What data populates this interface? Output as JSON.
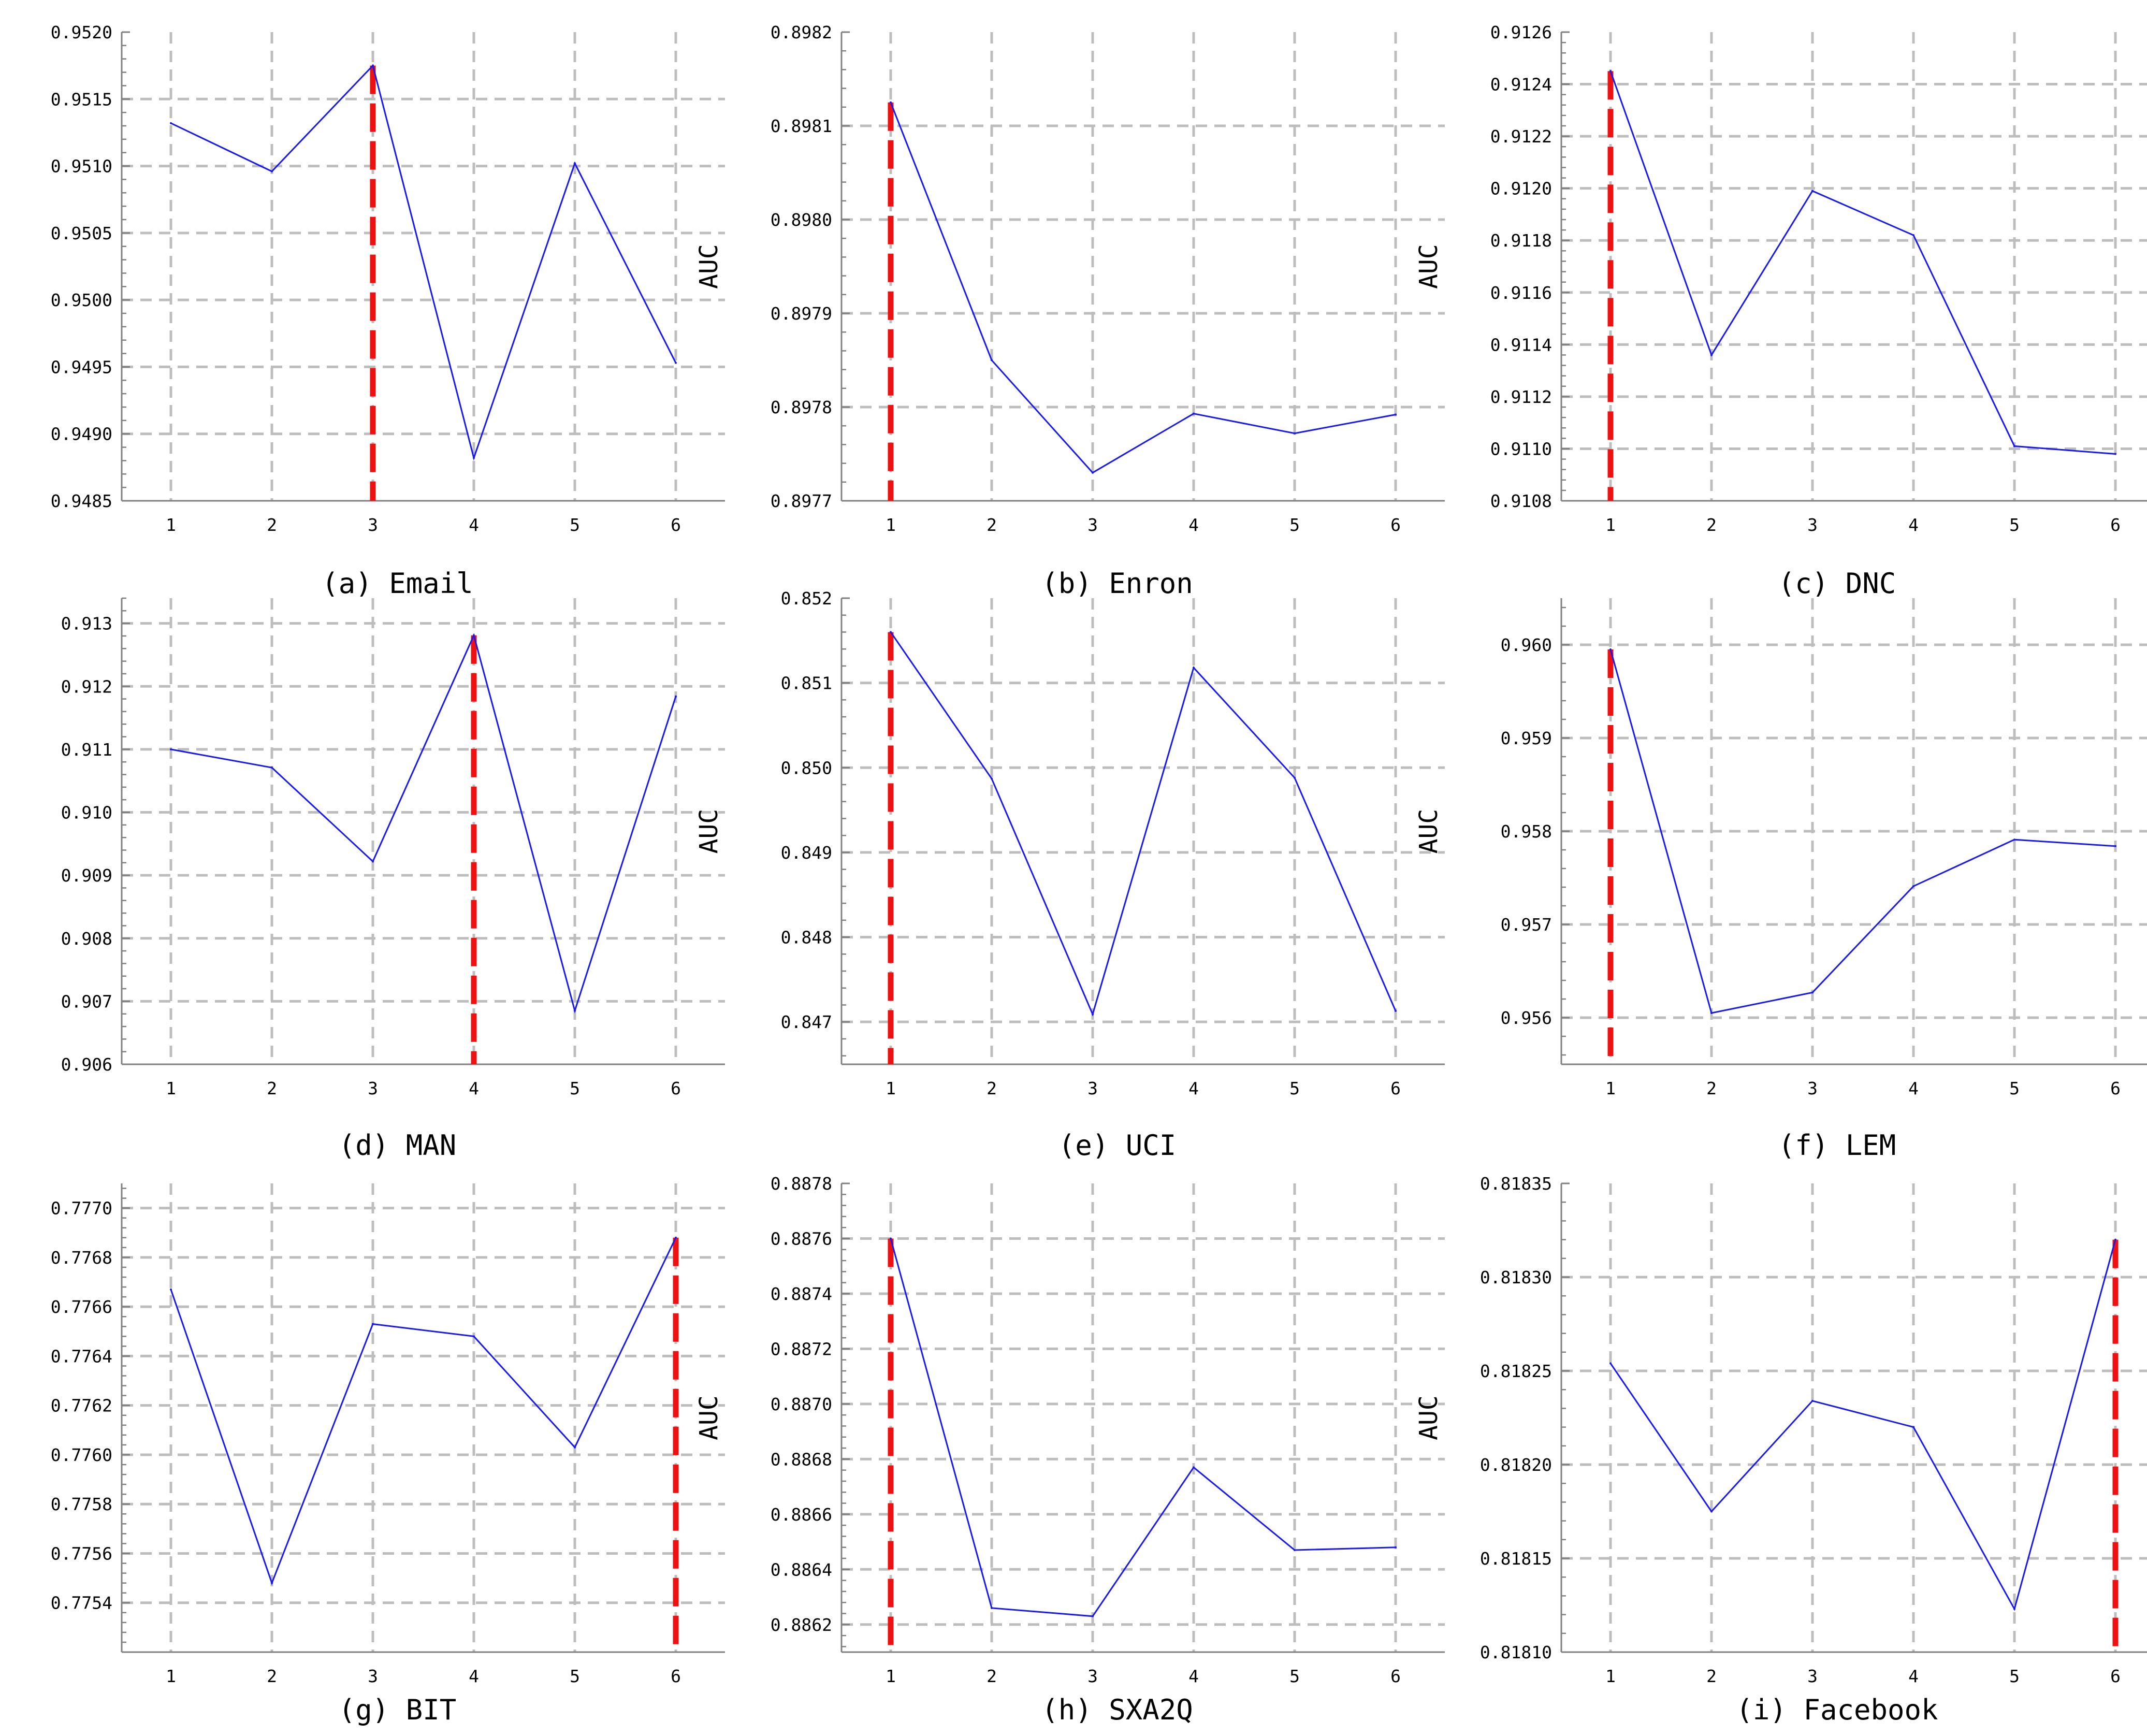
{
  "chart_data": [
    {
      "type": "line",
      "caption": "(a) Email",
      "ylabel": "AUC",
      "x": [
        1,
        2,
        3,
        4,
        5,
        6
      ],
      "values": [
        0.95132,
        0.95096,
        0.95175,
        0.94882,
        0.95102,
        0.94953
      ],
      "ylim": [
        0.9485,
        0.952
      ],
      "ticks": [
        "0.9485",
        "0.9490",
        "0.9495",
        "0.9500",
        "0.9505",
        "0.9510",
        "0.9515",
        "0.9520"
      ],
      "best": 3,
      "grid": true
    },
    {
      "type": "line",
      "caption": "(b) Enron",
      "ylabel": "AUC",
      "x": [
        1,
        2,
        3,
        4,
        5,
        6
      ],
      "values": [
        0.898125,
        0.89785,
        0.89773,
        0.897793,
        0.897772,
        0.897792
      ],
      "ylim": [
        0.8977,
        0.8982
      ],
      "ticks": [
        "0.8977",
        "0.8978",
        "0.8979",
        "0.8980",
        "0.8981",
        "0.8982"
      ],
      "best": 1,
      "grid": true
    },
    {
      "type": "line",
      "caption": "(c) DNC",
      "ylabel": "AUC",
      "x": [
        1,
        2,
        3,
        4,
        5,
        6
      ],
      "values": [
        0.91245,
        0.91136,
        0.91199,
        0.91182,
        0.91101,
        0.91098
      ],
      "ylim": [
        0.9108,
        0.9126
      ],
      "ticks": [
        "0.9108",
        "0.9110",
        "0.9112",
        "0.9114",
        "0.9116",
        "0.9118",
        "0.9120",
        "0.9122",
        "0.9124",
        "0.9126"
      ],
      "best": 1,
      "grid": true
    },
    {
      "type": "line",
      "caption": "(d) MAN",
      "ylabel": "AUC",
      "x": [
        1,
        2,
        3,
        4,
        5,
        6
      ],
      "values": [
        0.911,
        0.91071,
        0.90922,
        0.91281,
        0.90685,
        0.91184
      ],
      "ylim": [
        0.906,
        0.9134
      ],
      "ticks": [
        "0.906",
        "0.907",
        "0.908",
        "0.909",
        "0.910",
        "0.911",
        "0.912",
        "0.913"
      ],
      "best": 4,
      "grid": true
    },
    {
      "type": "line",
      "caption": "(e) UCI",
      "ylabel": "AUC",
      "x": [
        1,
        2,
        3,
        4,
        5,
        6
      ],
      "values": [
        0.8516,
        0.84987,
        0.84709,
        0.85118,
        0.84988,
        0.84713
      ],
      "ylim": [
        0.8465,
        0.852
      ],
      "ticks": [
        "0.847",
        "0.848",
        "0.849",
        "0.850",
        "0.851",
        "0.852"
      ],
      "best": 1,
      "grid": true
    },
    {
      "type": "line",
      "caption": "(f) LEM",
      "ylabel": "AUC",
      "x": [
        1,
        2,
        3,
        4,
        5,
        6
      ],
      "values": [
        0.95995,
        0.95605,
        0.95627,
        0.95741,
        0.95791,
        0.95784
      ],
      "ylim": [
        0.9555,
        0.9605
      ],
      "ticks": [
        "0.956",
        "0.957",
        "0.958",
        "0.959",
        "0.960"
      ],
      "best": 1,
      "grid": true
    },
    {
      "type": "line",
      "caption": "(g) BIT",
      "ylabel": "AUC",
      "x": [
        1,
        2,
        3,
        4,
        5,
        6
      ],
      "values": [
        0.77667,
        0.77548,
        0.77653,
        0.77648,
        0.77603,
        0.77688
      ],
      "ylim": [
        0.7752,
        0.7771
      ],
      "ticks": [
        "0.7754",
        "0.7756",
        "0.7758",
        "0.7760",
        "0.7762",
        "0.7764",
        "0.7766",
        "0.7768",
        "0.7770"
      ],
      "best": 6,
      "grid": true
    },
    {
      "type": "line",
      "caption": "(h) SXA2Q",
      "ylabel": "AUC",
      "x": [
        1,
        2,
        3,
        4,
        5,
        6
      ],
      "values": [
        0.8876,
        0.88626,
        0.88623,
        0.88677,
        0.88647,
        0.88648
      ],
      "ylim": [
        0.8861,
        0.8878
      ],
      "ticks": [
        "0.8862",
        "0.8864",
        "0.8866",
        "0.8868",
        "0.8870",
        "0.8872",
        "0.8874",
        "0.8876",
        "0.8878"
      ],
      "best": 1,
      "grid": true
    },
    {
      "type": "line",
      "caption": "(i) Facebook",
      "ylabel": "AUC",
      "x": [
        1,
        2,
        3,
        4,
        5,
        6
      ],
      "values": [
        0.818254,
        0.818175,
        0.818234,
        0.81822,
        0.818123,
        0.81832
      ],
      "ylim": [
        0.8181,
        0.81835
      ],
      "ticks": [
        "0.81810",
        "0.81815",
        "0.81820",
        "0.81825",
        "0.81830",
        "0.81835"
      ],
      "best": 6,
      "grid": true
    }
  ],
  "colors": {
    "line": "#1a1aee",
    "best_marker": "#ee1111",
    "grid": "#bdbdbd",
    "axis": "#808080",
    "text": "#000000"
  }
}
